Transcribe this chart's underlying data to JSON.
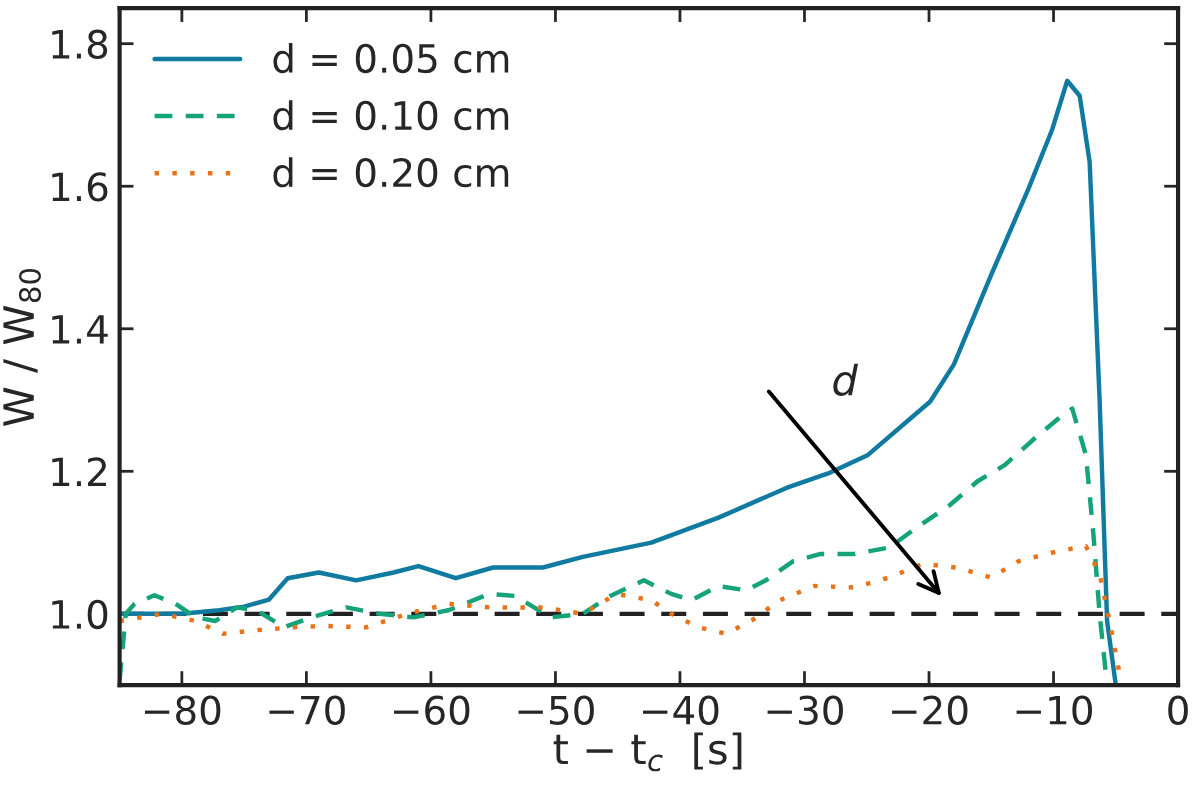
{
  "chart_data": {
    "type": "line",
    "xlabel": "t − t$_{c}$  [s]",
    "ylabel": "W / W$_{80}$",
    "xlim": [
      -85,
      0
    ],
    "ylim": [
      0.9,
      1.85
    ],
    "xticks": [
      {
        "value": -80,
        "label": "−80"
      },
      {
        "value": -70,
        "label": "−70"
      },
      {
        "value": -60,
        "label": "−60"
      },
      {
        "value": -50,
        "label": "−50"
      },
      {
        "value": -40,
        "label": "−40"
      },
      {
        "value": -30,
        "label": "−30"
      },
      {
        "value": -20,
        "label": "−20"
      },
      {
        "value": -10,
        "label": "−10"
      },
      0
    ],
    "yticks": [
      {
        "value": 1.0,
        "label": "1.0"
      },
      {
        "value": 1.2,
        "label": "1.2"
      },
      {
        "value": 1.4,
        "label": "1.4"
      },
      {
        "value": 1.6,
        "label": "1.6"
      },
      {
        "value": 1.8,
        "label": "1.8"
      }
    ],
    "grid": false,
    "legend": "top left",
    "ref_lines": [
      {
        "axis": "y",
        "value": 1.0,
        "color": "#222222",
        "line_style": "dashed"
      }
    ],
    "annotations": [
      "d"
    ],
    "series": [
      {
        "name": "d = 0.05 cm",
        "color": "#107aa0",
        "line_style": "solid",
        "x": [
          -85,
          -80,
          -77,
          -75,
          -73,
          -71.5,
          -69,
          -66,
          -63,
          -61,
          -58,
          -55,
          -51,
          -47.8,
          -42.3,
          -36.9,
          -31.4,
          -28.1,
          -24.9,
          -19.9,
          -18,
          -15,
          -12,
          -10.1,
          -8.9,
          -7.9,
          -7.1,
          -6.3,
          -5.7,
          -5.0
        ],
        "values": [
          1.0,
          1.0,
          1.005,
          1.01,
          1.02,
          1.05,
          1.058,
          1.047,
          1.058,
          1.067,
          1.05,
          1.065,
          1.065,
          1.08,
          1.1,
          1.135,
          1.177,
          1.197,
          1.223,
          1.298,
          1.35,
          1.476,
          1.597,
          1.68,
          1.748,
          1.727,
          1.634,
          1.3,
          0.99,
          0.9
        ]
      },
      {
        "name": "d = 0.10 cm",
        "color": "#15a37a",
        "line_style": "dashed",
        "x": [
          -85,
          -84.5,
          -83.8,
          -82.2,
          -80.5,
          -78.9,
          -77.3,
          -75.6,
          -74,
          -71.8,
          -69.6,
          -66.8,
          -64.1,
          -61.4,
          -58.6,
          -55.3,
          -53.2,
          -50.4,
          -47.8,
          -45.6,
          -42.9,
          -40.7,
          -39.1,
          -36.9,
          -34.7,
          -33.1,
          -30.9,
          -28.7,
          -26.0,
          -23.2,
          -21.0,
          -18.3,
          -16.1,
          -13.9,
          -11.2,
          -9.6,
          -8.5,
          -7.4,
          -6.8,
          -6.3,
          -5.7
        ],
        "values": [
          0.907,
          1.0,
          1.014,
          1.026,
          1.014,
          0.995,
          0.99,
          1.009,
          1.005,
          0.981,
          0.995,
          1.009,
          1.0,
          0.995,
          1.005,
          1.028,
          1.025,
          0.995,
          1.0,
          1.025,
          1.047,
          1.028,
          1.019,
          1.039,
          1.033,
          1.047,
          1.074,
          1.084,
          1.084,
          1.093,
          1.121,
          1.153,
          1.186,
          1.209,
          1.251,
          1.274,
          1.288,
          1.223,
          1.112,
          1.0,
          0.9
        ]
      },
      {
        "name": "d = 0.20 cm",
        "color": "#e8731a",
        "line_style": "dotted",
        "x": [
          -85,
          -81.6,
          -78.9,
          -76.7,
          -74,
          -71.2,
          -68.5,
          -65.2,
          -61.9,
          -58.6,
          -55.3,
          -51,
          -47.8,
          -45.1,
          -42.3,
          -40.7,
          -38.5,
          -36.3,
          -34.2,
          -32,
          -29.2,
          -26,
          -23.2,
          -20.5,
          -17.8,
          -15,
          -12.8,
          -9.6,
          -7.4,
          -6.3,
          -5.4,
          -4.7
        ],
        "values": [
          0.99,
          1.0,
          0.99,
          0.972,
          0.977,
          0.981,
          0.983,
          0.981,
          1.0,
          1.014,
          1.009,
          1.009,
          1.0,
          1.028,
          1.019,
          1.0,
          0.981,
          0.972,
          0.991,
          1.019,
          1.039,
          1.037,
          1.051,
          1.07,
          1.065,
          1.051,
          1.074,
          1.088,
          1.095,
          1.056,
          0.981,
          0.916
        ]
      }
    ]
  }
}
